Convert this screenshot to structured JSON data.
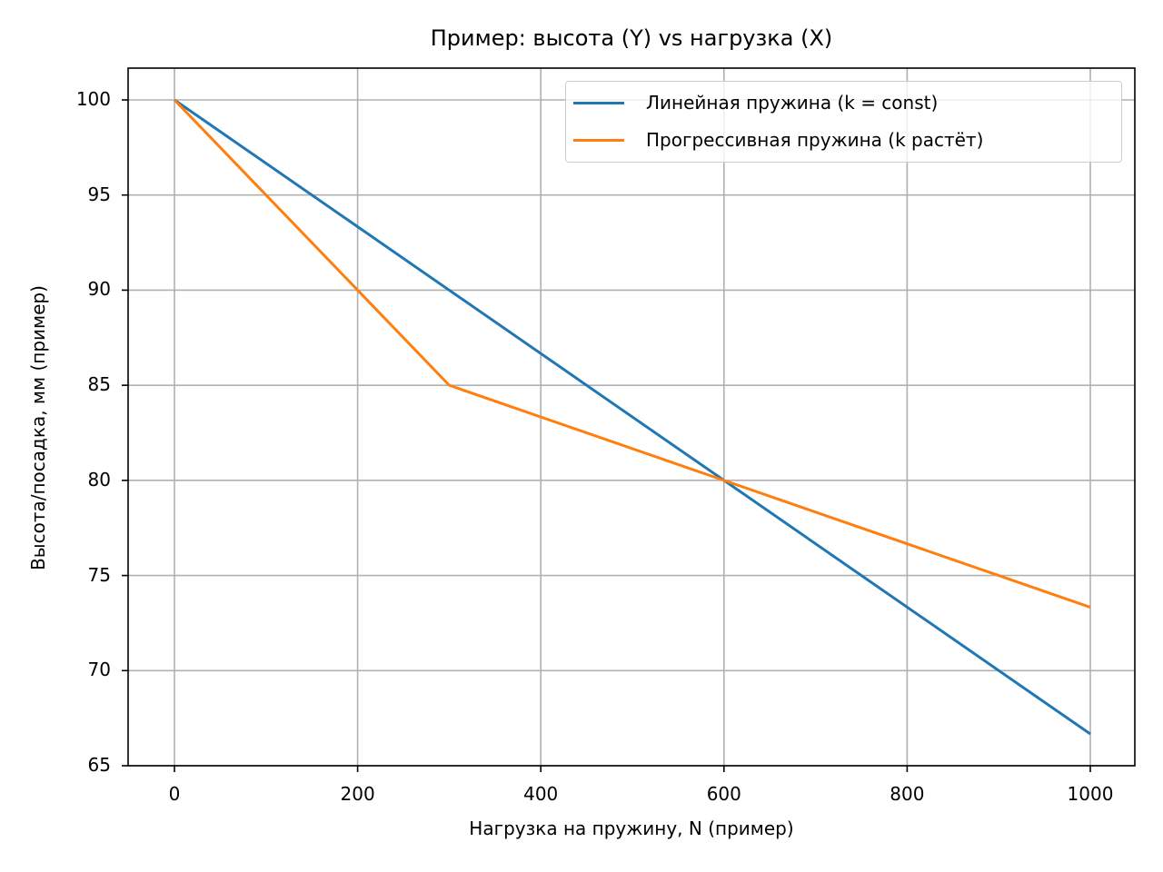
{
  "chart_data": {
    "type": "line",
    "title": "Пример: высота (Y) vs нагрузка (X)",
    "xlabel": "Нагрузка на пружину, N (пример)",
    "ylabel": "Высота/посадка, мм (пример)",
    "xlim": [
      -50,
      1050
    ],
    "ylim": [
      65,
      101.67
    ],
    "xticks": [
      "0",
      "200",
      "400",
      "600",
      "800",
      "1000"
    ],
    "yticks": [
      "65",
      "70",
      "75",
      "80",
      "85",
      "90",
      "95",
      "100"
    ],
    "grid": true,
    "legend_position": "upper right",
    "series": [
      {
        "name": "Линейная пружина (k = const)",
        "color": "#1f77b4",
        "x": [
          0,
          1000
        ],
        "y": [
          100,
          66.67
        ]
      },
      {
        "name": "Прогрессивная пружина (k растёт)",
        "color": "#ff7f0e",
        "x": [
          0,
          300,
          600,
          1000
        ],
        "y": [
          100,
          85,
          80,
          73.33
        ]
      }
    ]
  },
  "axes": {
    "x_ticks": [
      {
        "label": "0",
        "value": 0
      },
      {
        "label": "200",
        "value": 200
      },
      {
        "label": "400",
        "value": 400
      },
      {
        "label": "600",
        "value": 600
      },
      {
        "label": "800",
        "value": 800
      },
      {
        "label": "1000",
        "value": 1000
      }
    ],
    "y_ticks": [
      {
        "label": "100",
        "value": 100
      },
      {
        "label": "95",
        "value": 95
      },
      {
        "label": "90",
        "value": 90
      },
      {
        "label": "85",
        "value": 85
      },
      {
        "label": "80",
        "value": 80
      },
      {
        "label": "75",
        "value": 75
      },
      {
        "label": "70",
        "value": 70
      },
      {
        "label": "65",
        "value": 65
      }
    ]
  },
  "legend": {
    "items": [
      {
        "label": "Линейная пружина (k = const)",
        "color": "#1f77b4"
      },
      {
        "label": "Прогрессивная пружина (k растёт)",
        "color": "#ff7f0e"
      }
    ]
  },
  "colors": {
    "grid": "#b0b0b0",
    "axis": "#000000",
    "legend_border": "#cccccc"
  }
}
